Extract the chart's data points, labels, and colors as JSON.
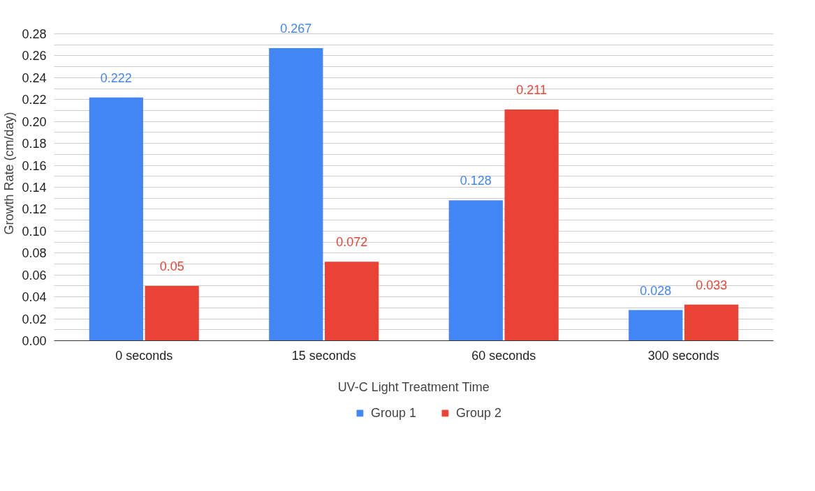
{
  "chart_data": {
    "type": "bar",
    "xlabel": "UV-C Light Treatment Time",
    "ylabel": "Growth Rate (cm/day)",
    "categories": [
      "0 seconds",
      "15 seconds",
      "60 seconds",
      "300 seconds"
    ],
    "series": [
      {
        "name": "Group 1",
        "color": "#4285f4",
        "values": [
          0.222,
          0.267,
          0.128,
          0.028
        ]
      },
      {
        "name": "Group 2",
        "color": "#ea4335",
        "values": [
          0.05,
          0.072,
          0.211,
          0.033
        ]
      }
    ],
    "ylim": [
      0,
      0.28
    ],
    "yticks": [
      "0.00",
      {
        "value": 0.01,
        "label": null
      },
      "0.02",
      {
        "value": 0.03,
        "label": null
      },
      "0.04",
      {
        "value": 0.05,
        "label": null
      },
      "0.06",
      {
        "value": 0.07,
        "label": null
      },
      "0.08",
      {
        "value": 0.09,
        "label": null
      },
      "0.10",
      {
        "value": 0.11,
        "label": null
      },
      "0.12",
      {
        "value": 0.13,
        "label": null
      },
      "0.14",
      {
        "value": 0.15,
        "label": null
      },
      "0.16",
      {
        "value": 0.17,
        "label": null
      },
      "0.18",
      {
        "value": 0.19,
        "label": null
      },
      "0.20",
      {
        "value": 0.21,
        "label": null
      },
      "0.22",
      {
        "value": 0.23,
        "label": null
      },
      "0.24",
      {
        "value": 0.25,
        "label": null
      },
      "0.26",
      {
        "value": 0.27,
        "label": null
      },
      "0.28"
    ],
    "grid": "y",
    "legend": "bottom",
    "data_labels": true
  }
}
